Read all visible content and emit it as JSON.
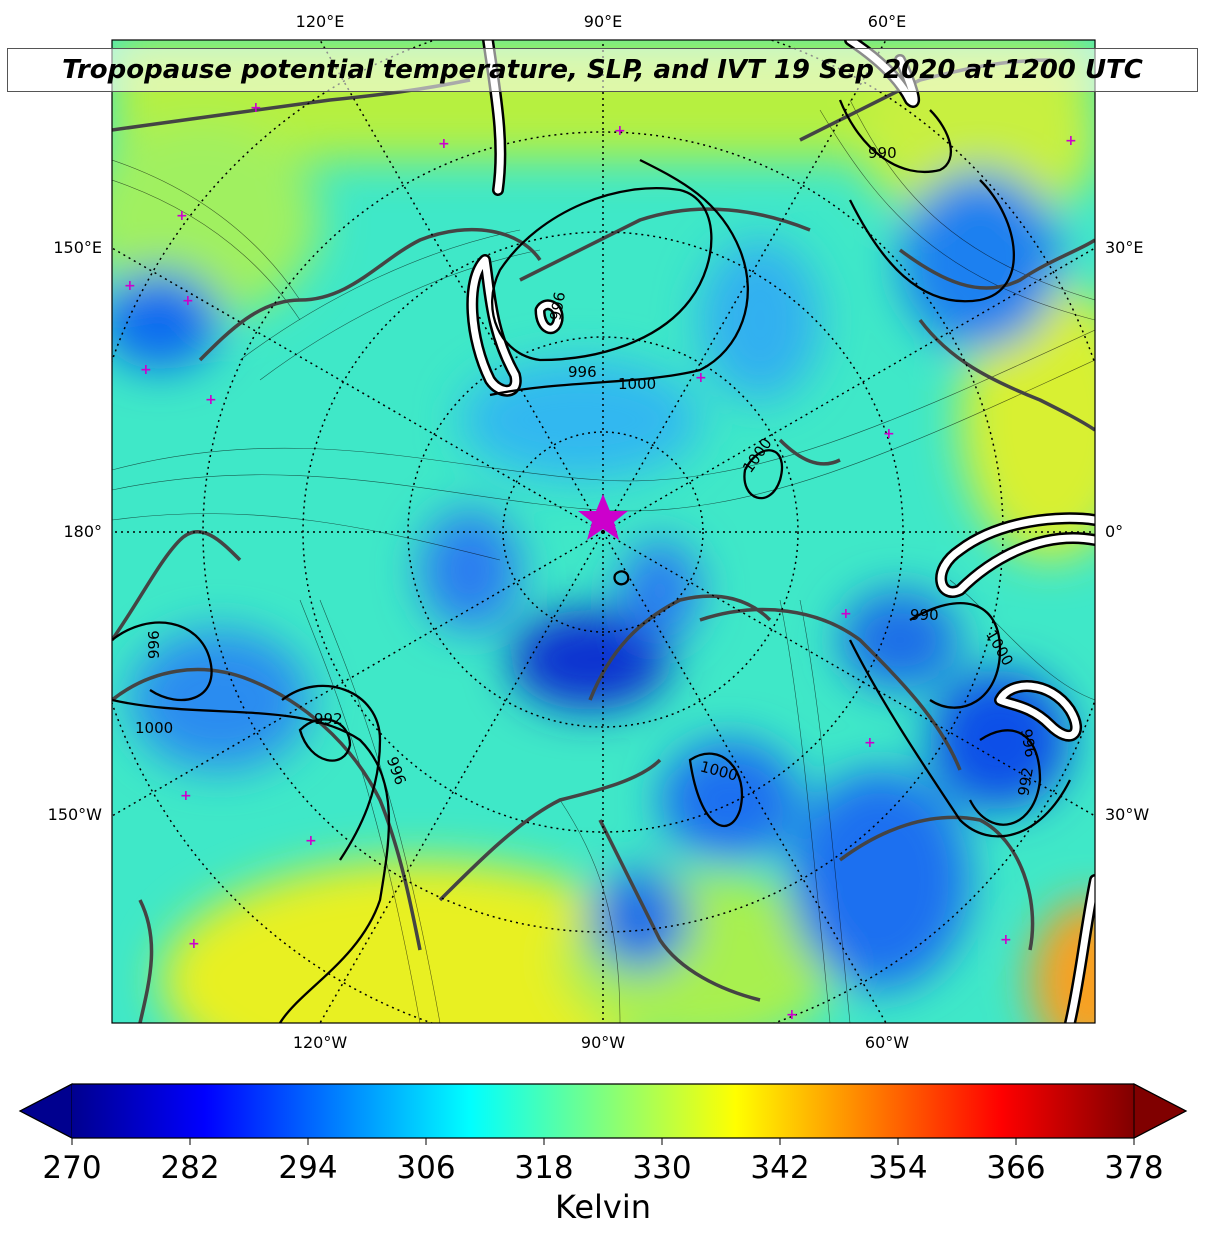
{
  "title": "Tropopause potential temperature, SLP, and IVT 19 Sep 2020 at 1200 UTC",
  "map": {
    "projection": "north-polar-stereographic",
    "center_marker": "star-icon",
    "lon_labels_top": [
      "120°E",
      "90°E",
      "60°E"
    ],
    "lon_labels_bottom": [
      "120°W",
      "90°W",
      "60°W"
    ],
    "lon_labels_left": [
      "150°E",
      "180°",
      "150°W"
    ],
    "lon_labels_right": [
      "30°E",
      "0°",
      "30°W"
    ],
    "slp_contour_labels": [
      "996",
      "1000",
      "1000",
      "990",
      "1000",
      "996",
      "992",
      "996",
      "1000",
      "992",
      "996",
      "1000",
      "990",
      "996"
    ],
    "colors": {
      "coastline": "#444444",
      "marker": "#cc00cc",
      "ivt_contour": "#ffffff",
      "slp_contour": "#000000"
    }
  },
  "colorbar": {
    "colormap": "jet",
    "extend": "both",
    "min": 270,
    "max": 378,
    "ticks": [
      "270",
      "282",
      "294",
      "306",
      "318",
      "330",
      "342",
      "354",
      "366",
      "378"
    ],
    "label": "Kelvin"
  }
}
